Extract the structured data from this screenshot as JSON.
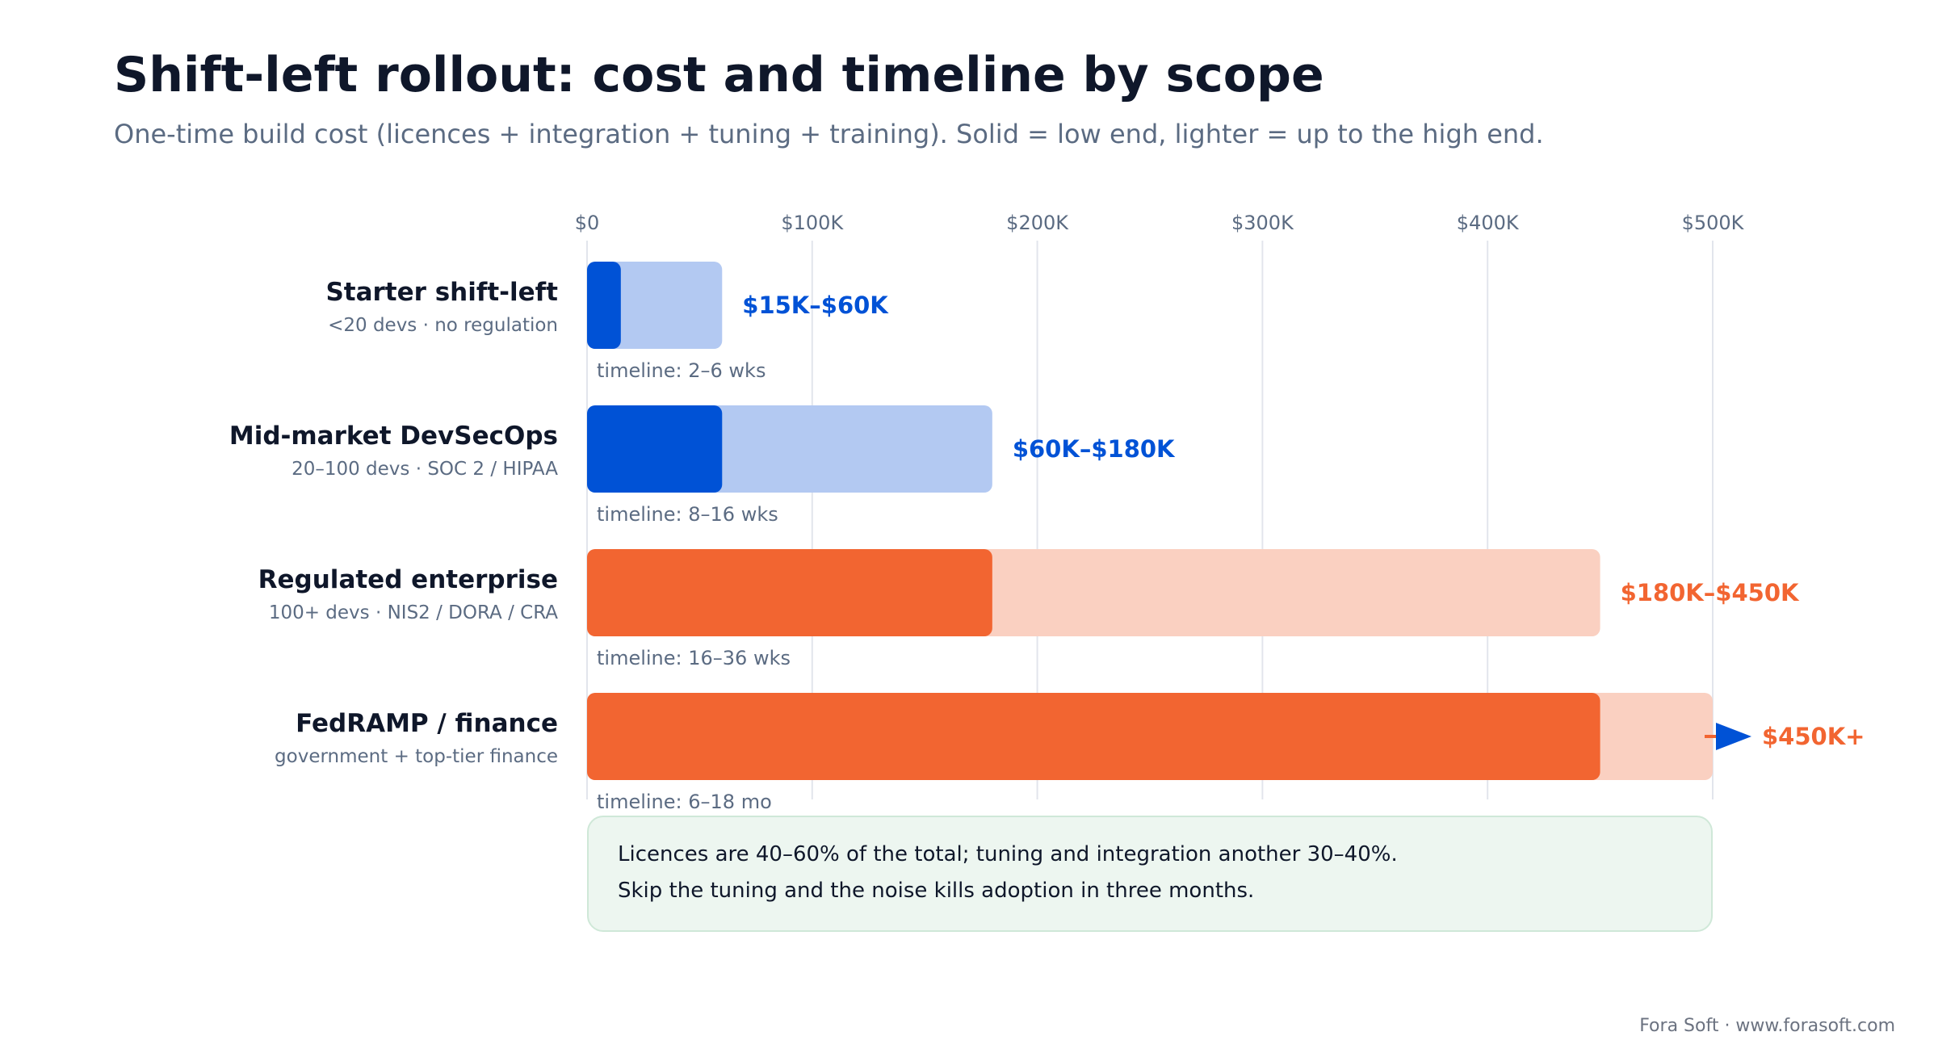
{
  "title": "Shift-left rollout: cost and timeline by scope",
  "subtitle": "One-time build cost (licences + integration + tuning + training). Solid = low end, lighter = up to the high end.",
  "note": {
    "line1": "Licences are 40–60% of the total; tuning and integration another 30–40%.",
    "line2": "Skip the tuning and the noise kills adoption in three months."
  },
  "footer": "Fora Soft · www.forasoft.com",
  "colors": {
    "blue": "#0052d6",
    "blue_light": "#b3c9f2",
    "orange": "#f26531",
    "orange_light": "#fad0c1"
  },
  "chart_data": {
    "type": "bar",
    "orientation": "horizontal",
    "stacked_range": true,
    "xlim": [
      0,
      500000
    ],
    "ticks": [
      0,
      100000,
      200000,
      300000,
      400000,
      500000
    ],
    "tick_labels": [
      "$0",
      "$100K",
      "$200K",
      "$300K",
      "$400K",
      "$500K"
    ],
    "grid": true,
    "categories": [
      {
        "name": "Starter shift-left",
        "desc": "<20 devs · no regulation",
        "low": 15000,
        "high": 60000,
        "label": "$15K–$60K",
        "timeline": "timeline: 2–6 wks",
        "color": "blue",
        "open_ended": false
      },
      {
        "name": "Mid-market DevSecOps",
        "desc": "20–100 devs · SOC 2 / HIPAA",
        "low": 60000,
        "high": 180000,
        "label": "$60K–$180K",
        "timeline": "timeline: 8–16 wks",
        "color": "blue",
        "open_ended": false
      },
      {
        "name": "Regulated enterprise",
        "desc": "100+ devs · NIS2 / DORA / CRA",
        "low": 180000,
        "high": 450000,
        "label": "$180K–$450K",
        "timeline": "timeline: 16–36 wks",
        "color": "orange",
        "open_ended": false
      },
      {
        "name": "FedRAMP / finance",
        "desc": "government + top-tier finance",
        "low": 450000,
        "high": 500000,
        "label": "$450K+",
        "timeline": "timeline: 6–18 mo",
        "color": "orange",
        "open_ended": true
      }
    ]
  }
}
